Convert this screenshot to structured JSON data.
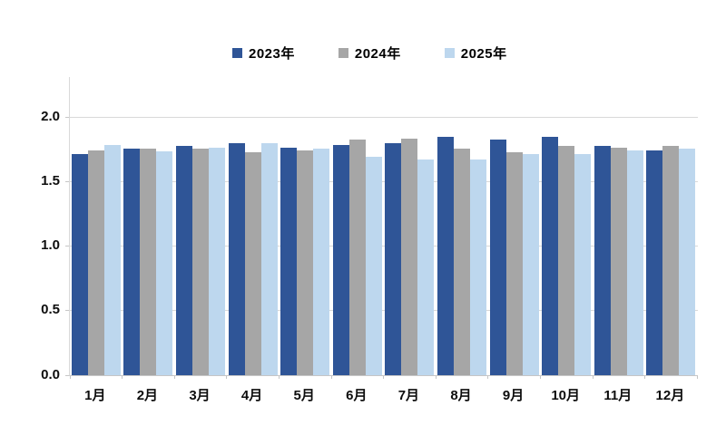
{
  "chart_data": {
    "type": "bar",
    "title": "",
    "xlabel": "",
    "ylabel": "",
    "categories": [
      "1月",
      "2月",
      "3月",
      "4月",
      "5月",
      "6月",
      "7月",
      "8月",
      "9月",
      "10月",
      "11月",
      "12月"
    ],
    "series": [
      {
        "name": "2023年",
        "color": "#2F5597",
        "values": [
          1.71,
          1.75,
          1.77,
          1.79,
          1.76,
          1.78,
          1.79,
          1.84,
          1.82,
          1.84,
          1.77,
          1.74
        ]
      },
      {
        "name": "2024年",
        "color": "#A6A6A6",
        "values": [
          1.74,
          1.75,
          1.75,
          1.72,
          1.74,
          1.82,
          1.83,
          1.75,
          1.72,
          1.77,
          1.76,
          1.77
        ]
      },
      {
        "name": "2025年",
        "color": "#BDD7EE",
        "values": [
          1.78,
          1.73,
          1.76,
          1.79,
          1.75,
          1.69,
          1.67,
          1.67,
          1.71,
          1.71,
          1.74,
          1.75
        ]
      }
    ],
    "ylim": [
      0,
      2.0
    ],
    "y_ticks": [
      0.0,
      0.5,
      1.0,
      1.5,
      2.0
    ],
    "y_tick_labels": [
      "0.0",
      "0.5",
      "1.0",
      "1.5",
      "2.0"
    ],
    "grid": true,
    "legend_position": "top"
  },
  "colors": {
    "background": "#FFFFFF",
    "gridline": "#D9D9D9",
    "axis_line": "#C6C6C6",
    "axis_text": "#0D0D0D"
  }
}
